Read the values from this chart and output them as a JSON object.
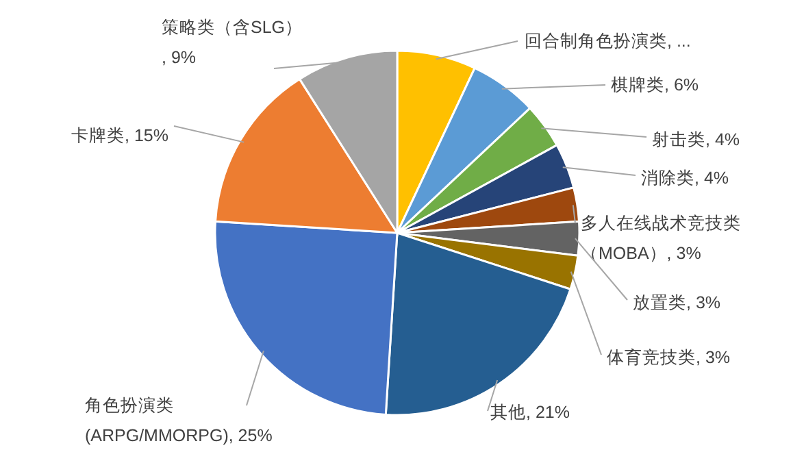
{
  "chart_data": {
    "type": "pie",
    "categories": [
      "回合制角色扮演类",
      "棋牌类",
      "射击类",
      "消除类",
      "多人在线战术竞技类（MOBA）",
      "放置类",
      "体育竞技类",
      "其他",
      "角色扮演类(ARPG/MMORPG)",
      "卡牌类",
      "策略类（含SLG）"
    ],
    "values": [
      7,
      6,
      4,
      4,
      3,
      3,
      3,
      21,
      25,
      15,
      9
    ],
    "value_labels": [
      "...",
      "6%",
      "4%",
      "4%",
      "3%",
      "3%",
      "3%",
      "21%",
      "25%",
      "15%",
      ", 9%"
    ],
    "colors": [
      "#ffc000",
      "#5b9bd5",
      "#70ad47",
      "#264478",
      "#9e480e",
      "#636363",
      "#997300",
      "#255e91",
      "#4472c4",
      "#ed7d31",
      "#a5a5a5"
    ]
  }
}
